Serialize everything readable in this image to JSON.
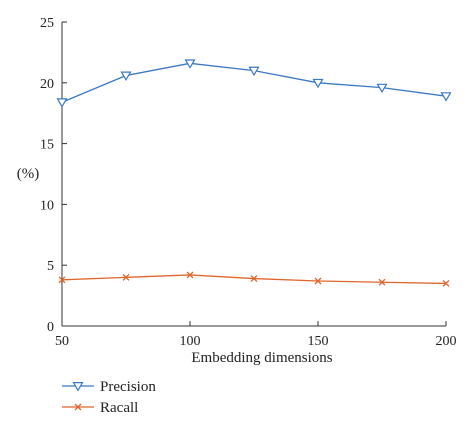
{
  "chart_data": {
    "type": "line",
    "title": "",
    "xlabel": "Embedding dimensions",
    "ylabel": "(%)",
    "x": [
      50,
      75,
      100,
      125,
      150,
      175,
      200
    ],
    "xlim": [
      50,
      200
    ],
    "ylim": [
      0,
      25
    ],
    "xticks": [
      50,
      100,
      150,
      200
    ],
    "yticks": [
      0,
      5,
      10,
      15,
      20,
      25
    ],
    "grid": false,
    "legend_position": "bottom-left",
    "series": [
      {
        "name": "Precision",
        "values": [
          18.4,
          20.6,
          21.6,
          21.0,
          20.0,
          19.6,
          18.9
        ],
        "color": "#3b78c2",
        "marker": "triangle-down"
      },
      {
        "name": "Racall",
        "values": [
          3.8,
          4.0,
          4.2,
          3.9,
          3.7,
          3.6,
          3.5
        ],
        "color": "#e0662c",
        "marker": "x"
      }
    ]
  }
}
